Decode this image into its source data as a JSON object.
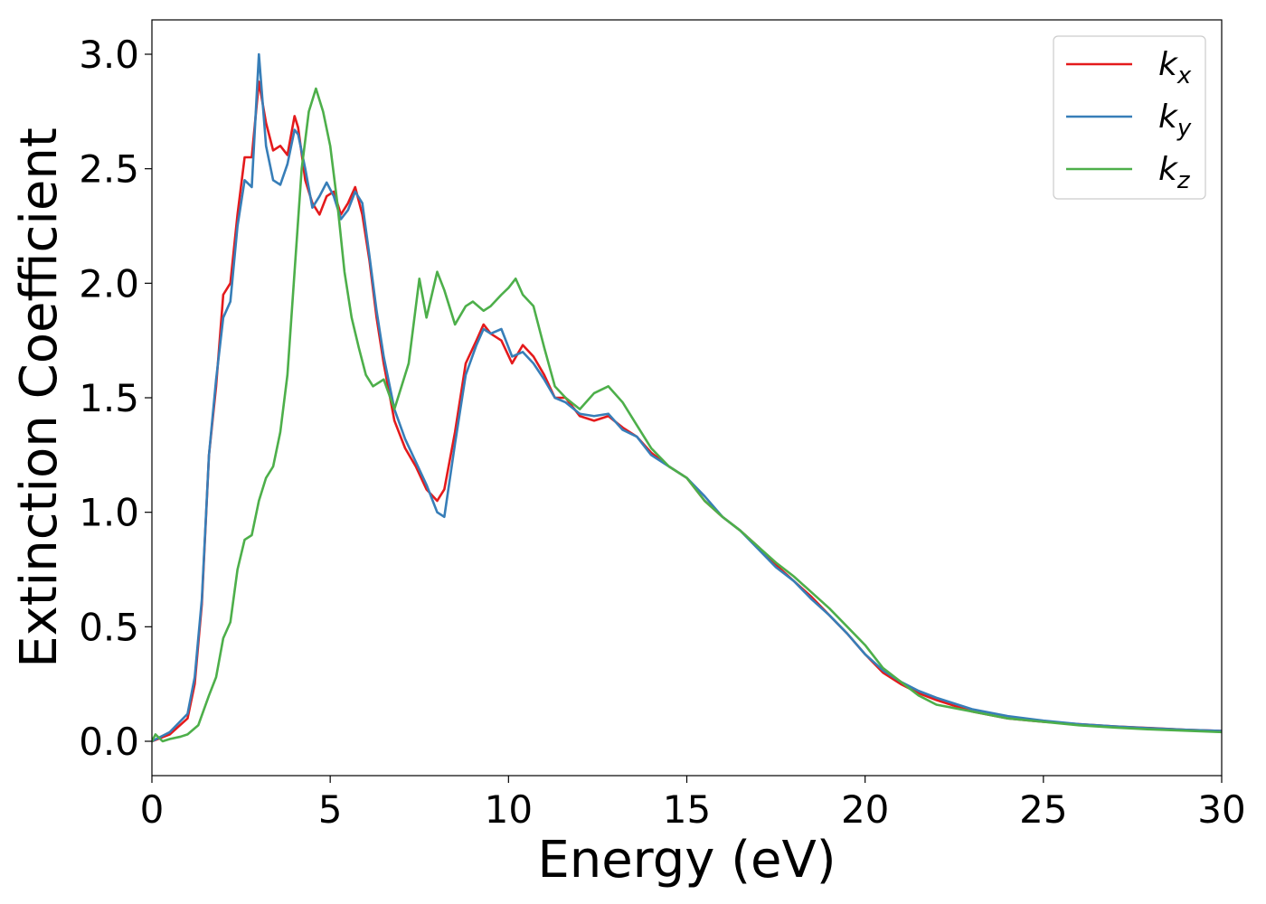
{
  "chart_data": {
    "type": "line",
    "title": "",
    "xlabel": "Energy (eV)",
    "ylabel": "Extinction Coefficient",
    "xlim": [
      0,
      30
    ],
    "ylim": [
      -0.15,
      3.15
    ],
    "xticks": [
      0,
      5,
      10,
      15,
      20,
      25,
      30
    ],
    "xtick_labels": [
      "0",
      "5",
      "10",
      "15",
      "20",
      "25",
      "30"
    ],
    "yticks": [
      0.0,
      0.5,
      1.0,
      1.5,
      2.0,
      2.5,
      3.0
    ],
    "ytick_labels": [
      "0.0",
      "0.5",
      "1.0",
      "1.5",
      "2.0",
      "2.5",
      "3.0"
    ],
    "grid": false,
    "legend_position": "top-right",
    "series": [
      {
        "name": "k_x",
        "label_base": "k",
        "label_sub": "x",
        "color": "#e41a1c",
        "x": [
          0,
          0.5,
          1.0,
          1.2,
          1.4,
          1.6,
          1.8,
          2.0,
          2.2,
          2.4,
          2.6,
          2.8,
          3.0,
          3.2,
          3.4,
          3.6,
          3.8,
          4.0,
          4.1,
          4.3,
          4.5,
          4.7,
          4.9,
          5.1,
          5.3,
          5.5,
          5.7,
          5.9,
          6.1,
          6.3,
          6.5,
          6.8,
          7.1,
          7.4,
          7.7,
          8.0,
          8.2,
          8.5,
          8.8,
          9.1,
          9.3,
          9.5,
          9.8,
          10.1,
          10.4,
          10.7,
          11.0,
          11.3,
          11.6,
          12.0,
          12.4,
          12.8,
          13.2,
          13.6,
          14.0,
          14.5,
          15.0,
          15.5,
          16.0,
          16.5,
          17.0,
          17.5,
          18.0,
          18.5,
          19.0,
          19.5,
          20.0,
          20.5,
          21.0,
          21.5,
          22.0,
          23.0,
          24.0,
          25.0,
          26.0,
          27.0,
          28.0,
          29.0,
          30.0
        ],
        "y": [
          0.0,
          0.03,
          0.1,
          0.25,
          0.6,
          1.25,
          1.55,
          1.95,
          2.0,
          2.3,
          2.55,
          2.55,
          2.88,
          2.7,
          2.58,
          2.6,
          2.56,
          2.73,
          2.68,
          2.45,
          2.35,
          2.3,
          2.38,
          2.4,
          2.3,
          2.35,
          2.42,
          2.3,
          2.1,
          1.85,
          1.65,
          1.4,
          1.28,
          1.2,
          1.1,
          1.05,
          1.1,
          1.35,
          1.65,
          1.75,
          1.82,
          1.78,
          1.75,
          1.65,
          1.73,
          1.68,
          1.6,
          1.5,
          1.5,
          1.42,
          1.4,
          1.42,
          1.37,
          1.33,
          1.26,
          1.2,
          1.15,
          1.05,
          0.98,
          0.92,
          0.85,
          0.77,
          0.7,
          0.63,
          0.55,
          0.47,
          0.38,
          0.3,
          0.25,
          0.21,
          0.18,
          0.13,
          0.1,
          0.085,
          0.075,
          0.065,
          0.058,
          0.05,
          0.045
        ]
      },
      {
        "name": "k_y",
        "label_base": "k",
        "label_sub": "y",
        "color": "#377eb8",
        "x": [
          0,
          0.5,
          1.0,
          1.2,
          1.4,
          1.6,
          1.8,
          2.0,
          2.2,
          2.4,
          2.6,
          2.8,
          3.0,
          3.2,
          3.4,
          3.6,
          3.8,
          4.0,
          4.1,
          4.3,
          4.5,
          4.7,
          4.9,
          5.1,
          5.3,
          5.5,
          5.7,
          5.9,
          6.1,
          6.3,
          6.5,
          6.8,
          7.1,
          7.4,
          7.7,
          8.0,
          8.2,
          8.5,
          8.8,
          9.1,
          9.3,
          9.5,
          9.8,
          10.1,
          10.4,
          10.7,
          11.0,
          11.3,
          11.6,
          12.0,
          12.4,
          12.8,
          13.2,
          13.6,
          14.0,
          14.5,
          15.0,
          15.5,
          16.0,
          16.5,
          17.0,
          17.5,
          18.0,
          18.5,
          19.0,
          19.5,
          20.0,
          20.5,
          21.0,
          21.5,
          22.0,
          23.0,
          24.0,
          25.0,
          26.0,
          27.0,
          28.0,
          29.0,
          30.0
        ],
        "y": [
          0.0,
          0.04,
          0.12,
          0.28,
          0.62,
          1.25,
          1.58,
          1.85,
          1.92,
          2.25,
          2.45,
          2.42,
          3.0,
          2.6,
          2.45,
          2.43,
          2.52,
          2.67,
          2.65,
          2.5,
          2.33,
          2.38,
          2.44,
          2.38,
          2.28,
          2.32,
          2.4,
          2.35,
          2.12,
          1.88,
          1.68,
          1.45,
          1.32,
          1.22,
          1.12,
          1.0,
          0.98,
          1.3,
          1.6,
          1.73,
          1.8,
          1.78,
          1.8,
          1.68,
          1.7,
          1.65,
          1.58,
          1.5,
          1.48,
          1.43,
          1.42,
          1.43,
          1.36,
          1.33,
          1.25,
          1.2,
          1.15,
          1.07,
          0.98,
          0.92,
          0.84,
          0.76,
          0.7,
          0.62,
          0.55,
          0.47,
          0.38,
          0.31,
          0.26,
          0.22,
          0.19,
          0.14,
          0.11,
          0.09,
          0.075,
          0.065,
          0.057,
          0.05,
          0.045
        ]
      },
      {
        "name": "k_z",
        "label_base": "k",
        "label_sub": "z",
        "color": "#4daf4a",
        "x": [
          0,
          0.1,
          0.3,
          0.5,
          0.8,
          1.0,
          1.3,
          1.6,
          1.8,
          2.0,
          2.2,
          2.4,
          2.6,
          2.8,
          3.0,
          3.2,
          3.4,
          3.6,
          3.8,
          4.0,
          4.2,
          4.4,
          4.6,
          4.8,
          5.0,
          5.2,
          5.4,
          5.6,
          5.8,
          6.0,
          6.2,
          6.5,
          6.8,
          7.0,
          7.2,
          7.5,
          7.7,
          8.0,
          8.2,
          8.5,
          8.8,
          9.0,
          9.3,
          9.5,
          9.8,
          10.0,
          10.2,
          10.4,
          10.7,
          11.0,
          11.3,
          11.6,
          12.0,
          12.4,
          12.8,
          13.2,
          13.6,
          14.0,
          14.5,
          15.0,
          15.5,
          16.0,
          16.5,
          17.0,
          17.5,
          18.0,
          18.5,
          19.0,
          19.5,
          20.0,
          20.5,
          21.0,
          21.5,
          22.0,
          23.0,
          24.0,
          25.0,
          26.0,
          27.0,
          28.0,
          29.0,
          30.0
        ],
        "y": [
          0.0,
          0.03,
          0.0,
          0.01,
          0.02,
          0.03,
          0.07,
          0.2,
          0.28,
          0.45,
          0.52,
          0.75,
          0.88,
          0.9,
          1.05,
          1.15,
          1.2,
          1.35,
          1.6,
          2.05,
          2.5,
          2.75,
          2.85,
          2.75,
          2.6,
          2.35,
          2.05,
          1.85,
          1.72,
          1.6,
          1.55,
          1.58,
          1.45,
          1.55,
          1.65,
          2.02,
          1.85,
          2.05,
          1.97,
          1.82,
          1.9,
          1.92,
          1.88,
          1.9,
          1.95,
          1.98,
          2.02,
          1.95,
          1.9,
          1.72,
          1.55,
          1.5,
          1.45,
          1.52,
          1.55,
          1.48,
          1.38,
          1.28,
          1.2,
          1.15,
          1.05,
          0.98,
          0.92,
          0.85,
          0.78,
          0.72,
          0.65,
          0.58,
          0.5,
          0.42,
          0.32,
          0.26,
          0.2,
          0.16,
          0.13,
          0.1,
          0.085,
          0.07,
          0.06,
          0.052,
          0.046,
          0.04
        ]
      }
    ]
  }
}
